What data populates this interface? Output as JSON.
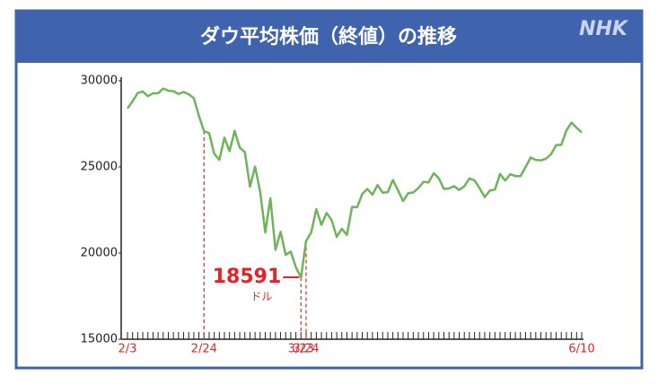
{
  "header": {
    "title": "ダウ平均株価（終値）の推移",
    "logo": "NHK"
  },
  "chart_data": {
    "type": "line",
    "categories": [
      "2/3",
      null,
      null,
      null,
      null,
      null,
      null,
      null,
      null,
      null,
      null,
      null,
      null,
      null,
      null,
      "2/24",
      null,
      null,
      null,
      null,
      null,
      null,
      null,
      null,
      null,
      null,
      null,
      null,
      null,
      null,
      null,
      null,
      null,
      null,
      "3/23",
      "3/24",
      null,
      null,
      null,
      null,
      null,
      null,
      null,
      null,
      null,
      null,
      null,
      null,
      null,
      null,
      null,
      null,
      null,
      null,
      null,
      null,
      null,
      null,
      null,
      null,
      null,
      null,
      null,
      null,
      null,
      null,
      null,
      null,
      null,
      null,
      null,
      null,
      null,
      null,
      null,
      null,
      null,
      null,
      null,
      null,
      null,
      null,
      null,
      null,
      null,
      null,
      null,
      null,
      null,
      "6/10"
    ],
    "series": [
      {
        "color": "#6fb35a",
        "values": [
          28399,
          28807,
          29290,
          29380,
          29103,
          29276,
          29276,
          29551,
          29423,
          29398,
          29232,
          29348,
          29220,
          28992,
          27961,
          27081,
          26957,
          25766,
          25409,
          26703,
          25917,
          27091,
          26121,
          25865,
          23851,
          25018,
          23553,
          21200,
          23186,
          20189,
          21237,
          19899,
          20087,
          19174,
          18591,
          20704,
          21200,
          22552,
          21637,
          22327,
          21917,
          20944,
          21413,
          21053,
          22680,
          22654,
          23434,
          23719,
          23390,
          23950,
          23505,
          23538,
          24242,
          23650,
          23019,
          23475,
          23516,
          23775,
          24134,
          24102,
          24634,
          24346,
          23724,
          23750,
          23883,
          23664,
          23876,
          24331,
          24222,
          23764,
          23248,
          23625,
          23686,
          24597,
          24207,
          24576,
          24474,
          24465,
          24995,
          25548,
          25401,
          25383,
          25475,
          25742,
          26270,
          26282,
          27111,
          27572,
          27272,
          27000
        ]
      }
    ],
    "ylim": [
      15000,
      30000
    ],
    "yticks": [
      15000,
      20000,
      25000,
      30000
    ],
    "annotation": {
      "label": "18591",
      "unit": "ドル"
    }
  }
}
